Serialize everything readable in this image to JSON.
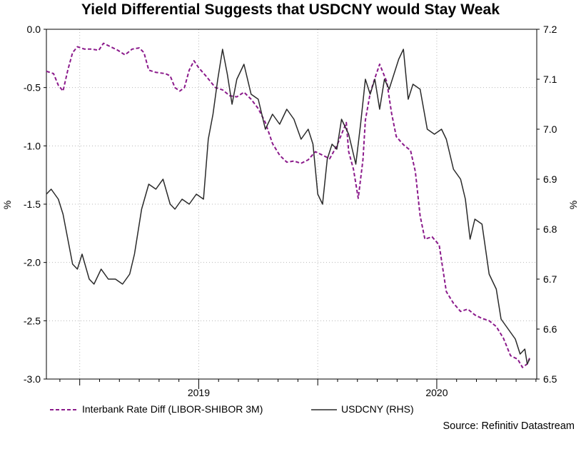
{
  "chart_data": {
    "type": "line",
    "title": "Yield Differential Suggests that USDCNY would Stay Weak",
    "ylabel_left": "%",
    "ylabel_right": "%",
    "ylim_left": [
      -3.0,
      0.0
    ],
    "ylim_right": [
      6.5,
      7.2
    ],
    "yticks_left": [
      "0.0",
      "-0.5",
      "-1.0",
      "-1.5",
      "-2.0",
      "-2.5",
      "-3.0"
    ],
    "yticks_right": [
      "7.2",
      "7.1",
      "7.0",
      "6.9",
      "6.8",
      "6.7",
      "6.6",
      "6.5"
    ],
    "xlim": [
      2018.36,
      2020.42
    ],
    "x_year_labels": [
      {
        "x": 2019.0,
        "label": "2019"
      },
      {
        "x": 2020.0,
        "label": "2020"
      }
    ],
    "series": [
      {
        "name": "Interbank Rate Diff (LIBOR-SHIBOR 3M)",
        "axis": "left",
        "style": "dashed",
        "color": "#8b1a8b",
        "points": [
          [
            2018.36,
            -0.36
          ],
          [
            2018.39,
            -0.38
          ],
          [
            2018.41,
            -0.48
          ],
          [
            2018.43,
            -0.53
          ],
          [
            2018.45,
            -0.35
          ],
          [
            2018.47,
            -0.2
          ],
          [
            2018.49,
            -0.15
          ],
          [
            2018.52,
            -0.17
          ],
          [
            2018.55,
            -0.17
          ],
          [
            2018.58,
            -0.18
          ],
          [
            2018.6,
            -0.12
          ],
          [
            2018.63,
            -0.15
          ],
          [
            2018.66,
            -0.18
          ],
          [
            2018.69,
            -0.22
          ],
          [
            2018.72,
            -0.17
          ],
          [
            2018.75,
            -0.16
          ],
          [
            2018.77,
            -0.2
          ],
          [
            2018.79,
            -0.35
          ],
          [
            2018.82,
            -0.37
          ],
          [
            2018.86,
            -0.38
          ],
          [
            2018.88,
            -0.4
          ],
          [
            2018.9,
            -0.5
          ],
          [
            2018.92,
            -0.53
          ],
          [
            2018.94,
            -0.5
          ],
          [
            2018.96,
            -0.35
          ],
          [
            2018.98,
            -0.27
          ],
          [
            2019.0,
            -0.33
          ],
          [
            2019.03,
            -0.4
          ],
          [
            2019.07,
            -0.5
          ],
          [
            2019.1,
            -0.52
          ],
          [
            2019.13,
            -0.57
          ],
          [
            2019.16,
            -0.58
          ],
          [
            2019.19,
            -0.54
          ],
          [
            2019.22,
            -0.6
          ],
          [
            2019.25,
            -0.68
          ],
          [
            2019.28,
            -0.8
          ],
          [
            2019.31,
            -0.98
          ],
          [
            2019.34,
            -1.08
          ],
          [
            2019.37,
            -1.14
          ],
          [
            2019.4,
            -1.13
          ],
          [
            2019.43,
            -1.15
          ],
          [
            2019.46,
            -1.12
          ],
          [
            2019.49,
            -1.05
          ],
          [
            2019.52,
            -1.08
          ],
          [
            2019.55,
            -1.11
          ],
          [
            2019.58,
            -1.0
          ],
          [
            2019.61,
            -0.85
          ],
          [
            2019.62,
            -0.8
          ],
          [
            2019.63,
            -1.05
          ],
          [
            2019.65,
            -1.2
          ],
          [
            2019.67,
            -1.45
          ],
          [
            2019.69,
            -1.12
          ],
          [
            2019.7,
            -0.78
          ],
          [
            2019.72,
            -0.55
          ],
          [
            2019.74,
            -0.42
          ],
          [
            2019.76,
            -0.3
          ],
          [
            2019.79,
            -0.45
          ],
          [
            2019.81,
            -0.72
          ],
          [
            2019.83,
            -0.92
          ],
          [
            2019.86,
            -0.99
          ],
          [
            2019.89,
            -1.04
          ],
          [
            2019.91,
            -1.22
          ],
          [
            2019.93,
            -1.6
          ],
          [
            2019.95,
            -1.8
          ],
          [
            2019.98,
            -1.78
          ],
          [
            2020.01,
            -1.85
          ],
          [
            2020.04,
            -2.25
          ],
          [
            2020.07,
            -2.35
          ],
          [
            2020.1,
            -2.42
          ],
          [
            2020.13,
            -2.4
          ],
          [
            2020.16,
            -2.45
          ],
          [
            2020.19,
            -2.48
          ],
          [
            2020.22,
            -2.5
          ],
          [
            2020.25,
            -2.55
          ],
          [
            2020.28,
            -2.65
          ],
          [
            2020.31,
            -2.8
          ],
          [
            2020.34,
            -2.83
          ],
          [
            2020.36,
            -2.9
          ],
          [
            2020.38,
            -2.87
          ],
          [
            2020.39,
            -2.82
          ]
        ]
      },
      {
        "name": "USDCNY (RHS)",
        "axis": "right",
        "style": "solid",
        "color": "#2a2a2a",
        "points": [
          [
            2018.36,
            6.87
          ],
          [
            2018.38,
            6.88
          ],
          [
            2018.41,
            6.86
          ],
          [
            2018.43,
            6.83
          ],
          [
            2018.45,
            6.78
          ],
          [
            2018.47,
            6.73
          ],
          [
            2018.49,
            6.72
          ],
          [
            2018.51,
            6.75
          ],
          [
            2018.54,
            6.7
          ],
          [
            2018.56,
            6.69
          ],
          [
            2018.59,
            6.72
          ],
          [
            2018.62,
            6.7
          ],
          [
            2018.65,
            6.7
          ],
          [
            2018.68,
            6.69
          ],
          [
            2018.71,
            6.71
          ],
          [
            2018.73,
            6.75
          ],
          [
            2018.76,
            6.84
          ],
          [
            2018.79,
            6.89
          ],
          [
            2018.82,
            6.88
          ],
          [
            2018.85,
            6.9
          ],
          [
            2018.88,
            6.85
          ],
          [
            2018.9,
            6.84
          ],
          [
            2018.93,
            6.86
          ],
          [
            2018.96,
            6.85
          ],
          [
            2018.99,
            6.87
          ],
          [
            2019.02,
            6.86
          ],
          [
            2019.04,
            6.98
          ],
          [
            2019.06,
            7.03
          ],
          [
            2019.08,
            7.1
          ],
          [
            2019.1,
            7.16
          ],
          [
            2019.12,
            7.11
          ],
          [
            2019.14,
            7.05
          ],
          [
            2019.16,
            7.1
          ],
          [
            2019.19,
            7.13
          ],
          [
            2019.22,
            7.07
          ],
          [
            2019.25,
            7.06
          ],
          [
            2019.28,
            7.0
          ],
          [
            2019.31,
            7.03
          ],
          [
            2019.34,
            7.01
          ],
          [
            2019.37,
            7.04
          ],
          [
            2019.4,
            7.02
          ],
          [
            2019.43,
            6.98
          ],
          [
            2019.46,
            7.0
          ],
          [
            2019.48,
            6.97
          ],
          [
            2019.5,
            6.87
          ],
          [
            2019.52,
            6.85
          ],
          [
            2019.54,
            6.94
          ],
          [
            2019.56,
            6.97
          ],
          [
            2019.58,
            6.96
          ],
          [
            2019.6,
            7.02
          ],
          [
            2019.63,
            6.99
          ],
          [
            2019.66,
            6.93
          ],
          [
            2019.68,
            7.01
          ],
          [
            2019.7,
            7.1
          ],
          [
            2019.72,
            7.07
          ],
          [
            2019.74,
            7.1
          ],
          [
            2019.76,
            7.04
          ],
          [
            2019.78,
            7.1
          ],
          [
            2019.8,
            7.08
          ],
          [
            2019.82,
            7.11
          ],
          [
            2019.84,
            7.14
          ],
          [
            2019.86,
            7.16
          ],
          [
            2019.88,
            7.06
          ],
          [
            2019.9,
            7.09
          ],
          [
            2019.93,
            7.08
          ],
          [
            2019.96,
            7.0
          ],
          [
            2019.99,
            6.99
          ],
          [
            2020.02,
            7.0
          ],
          [
            2020.04,
            6.98
          ],
          [
            2020.07,
            6.92
          ],
          [
            2020.1,
            6.9
          ],
          [
            2020.12,
            6.86
          ],
          [
            2020.14,
            6.78
          ],
          [
            2020.16,
            6.82
          ],
          [
            2020.19,
            6.81
          ],
          [
            2020.22,
            6.71
          ],
          [
            2020.25,
            6.68
          ],
          [
            2020.27,
            6.62
          ],
          [
            2020.3,
            6.6
          ],
          [
            2020.33,
            6.58
          ],
          [
            2020.35,
            6.55
          ],
          [
            2020.37,
            6.56
          ],
          [
            2020.38,
            6.53
          ],
          [
            2020.39,
            6.54
          ]
        ]
      }
    ],
    "legend": [
      {
        "label": "Interbank Rate Diff (LIBOR-SHIBOR 3M)",
        "style": "dashed",
        "color": "#8b1a8b"
      },
      {
        "label": "USDCNY (RHS)",
        "style": "solid",
        "color": "#2a2a2a"
      }
    ],
    "legend_position": "bottom",
    "grid": true,
    "source": "Source: Refinitiv Datastream"
  }
}
